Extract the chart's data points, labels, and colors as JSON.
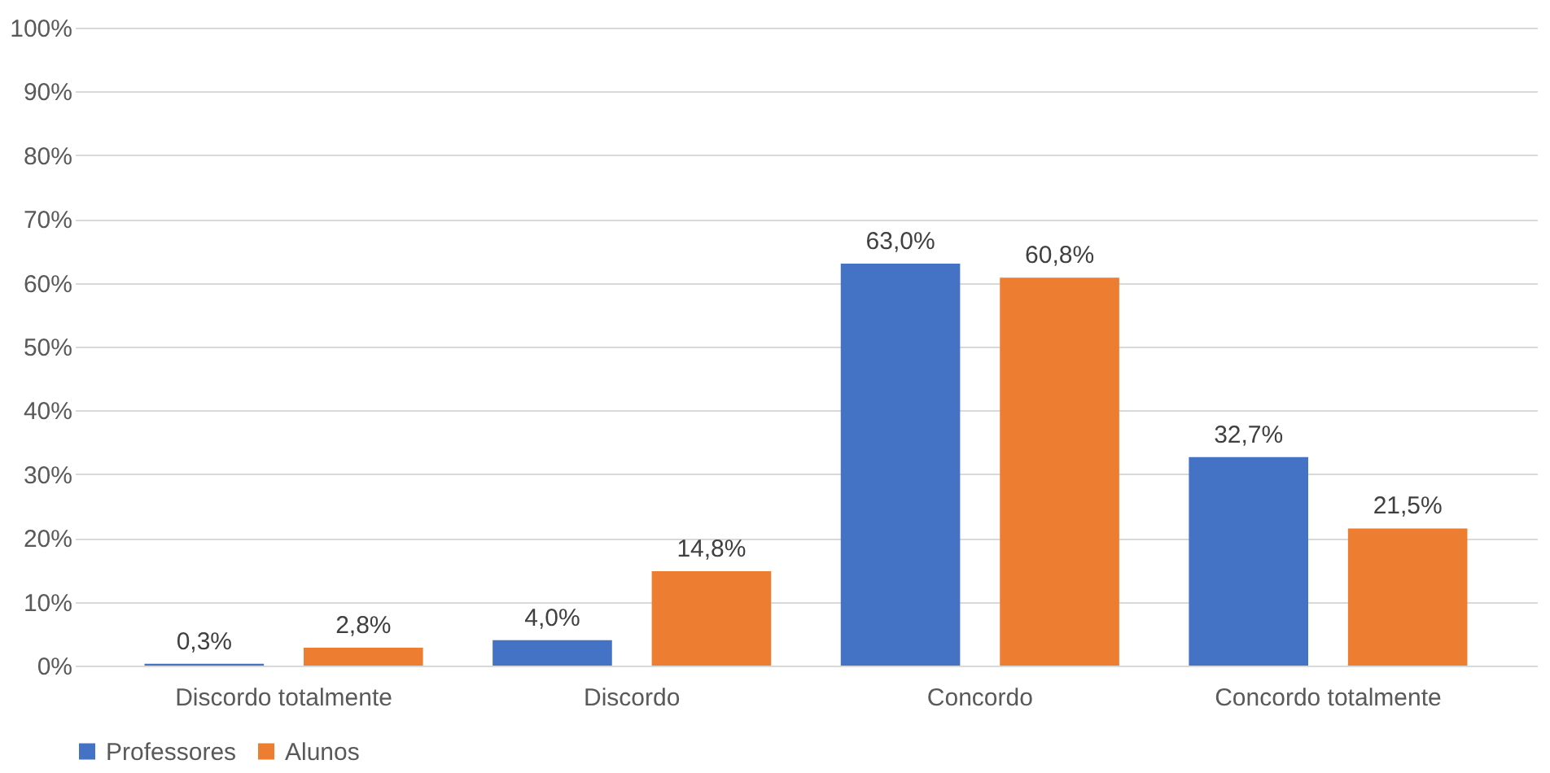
{
  "chart_data": {
    "type": "bar",
    "categories": [
      "Discordo totalmente",
      "Discordo",
      "Concordo",
      "Concordo totalmente"
    ],
    "series": [
      {
        "name": "Professores",
        "color": "#4472c4",
        "values": [
          0.3,
          4.0,
          63.0,
          32.7
        ],
        "value_labels": [
          "0,3%",
          "4,0%",
          "63,0%",
          "32,7%"
        ]
      },
      {
        "name": "Alunos",
        "color": "#ed7d31",
        "values": [
          2.8,
          14.8,
          60.8,
          21.5
        ],
        "value_labels": [
          "2,8%",
          "14,8%",
          "60,8%",
          "21,5%"
        ]
      }
    ],
    "ylim": [
      0,
      100
    ],
    "yticks": [
      {
        "value": 0,
        "label": "0%"
      },
      {
        "value": 10,
        "label": "10%"
      },
      {
        "value": 20,
        "label": "20%"
      },
      {
        "value": 30,
        "label": "30%"
      },
      {
        "value": 40,
        "label": "40%"
      },
      {
        "value": 50,
        "label": "50%"
      },
      {
        "value": 60,
        "label": "60%"
      },
      {
        "value": 70,
        "label": "70%"
      },
      {
        "value": 80,
        "label": "80%"
      },
      {
        "value": 90,
        "label": "90%"
      },
      {
        "value": 100,
        "label": "100%"
      }
    ],
    "grid": "y",
    "legend": "bottom"
  }
}
